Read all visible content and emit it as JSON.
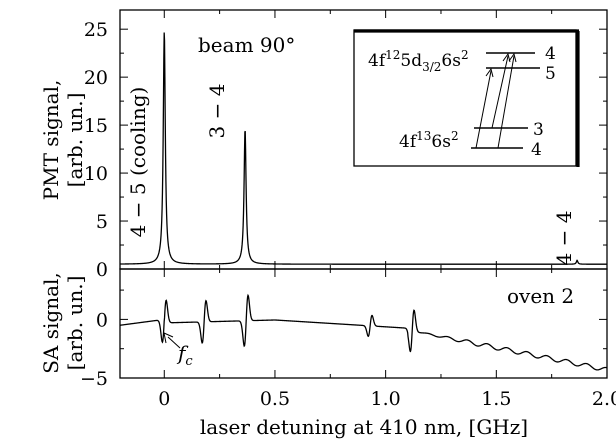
{
  "chart_data": [
    {
      "type": "line",
      "panel": "top",
      "ylabel_line1": "PMT signal,",
      "ylabel_line2": "[arb. un.]",
      "ylim": [
        0,
        27
      ],
      "xlim": [
        -0.2,
        2.0
      ],
      "yticks": [
        0,
        5,
        10,
        15,
        20,
        25
      ],
      "ytick_labels": [
        "0",
        "5",
        "10",
        "15",
        "20",
        "25"
      ],
      "annotations": {
        "title": "beam 90°",
        "peak1": "4 − 5 (cooling)",
        "peak2": "3 − 4",
        "peak3": "4 − 4"
      },
      "baseline": 0.5,
      "peaks": [
        {
          "label": "4 − 5 (cooling)",
          "x": 0.0,
          "y": 24.8
        },
        {
          "label": "3 − 4",
          "x": 0.365,
          "y": 14.6
        },
        {
          "label": "4 − 4",
          "x": 1.865,
          "y": 0.9
        }
      ],
      "inset": {
        "upper_config": "4f",
        "upper_config_sup": "12",
        "upper_config_mid": "5d",
        "upper_config_sub": "3/2",
        "upper_config_tail": "6s",
        "upper_config_tail_sup": "2",
        "lower_config": "4f",
        "lower_config_sup": "13",
        "lower_config_tail": "6s",
        "lower_config_tail_sup": "2",
        "levels": {
          "upper_a": "4",
          "upper_b": "5",
          "lower_a": "3",
          "lower_b": "4"
        }
      }
    },
    {
      "type": "line",
      "panel": "bottom",
      "ylabel_line1": "SA signal,",
      "ylabel_line2": "[arb. un.]",
      "ylim": [
        -5,
        4.3
      ],
      "xlim": [
        -0.2,
        2.0
      ],
      "yticks": [
        -5,
        0
      ],
      "ytick_labels": [
        "−5",
        "0"
      ],
      "xticks": [
        0,
        0.5,
        1.0,
        1.5,
        2.0
      ],
      "xtick_labels": [
        "0",
        "0.5",
        "1.0",
        "1.5",
        "2.0"
      ],
      "xlabel": "laser detuning at 410 nm, [GHz]",
      "annotations": {
        "title": "oven 2",
        "marker": "f",
        "marker_sub": "c"
      },
      "features": [
        {
          "x": 0.0,
          "amplitude": 3.2
        },
        {
          "x": 0.18,
          "amplitude": 3.0
        },
        {
          "x": 0.37,
          "amplitude": 3.6
        },
        {
          "x": 0.93,
          "amplitude": 1.5
        },
        {
          "x": 1.12,
          "amplitude": 3.0
        }
      ]
    }
  ]
}
